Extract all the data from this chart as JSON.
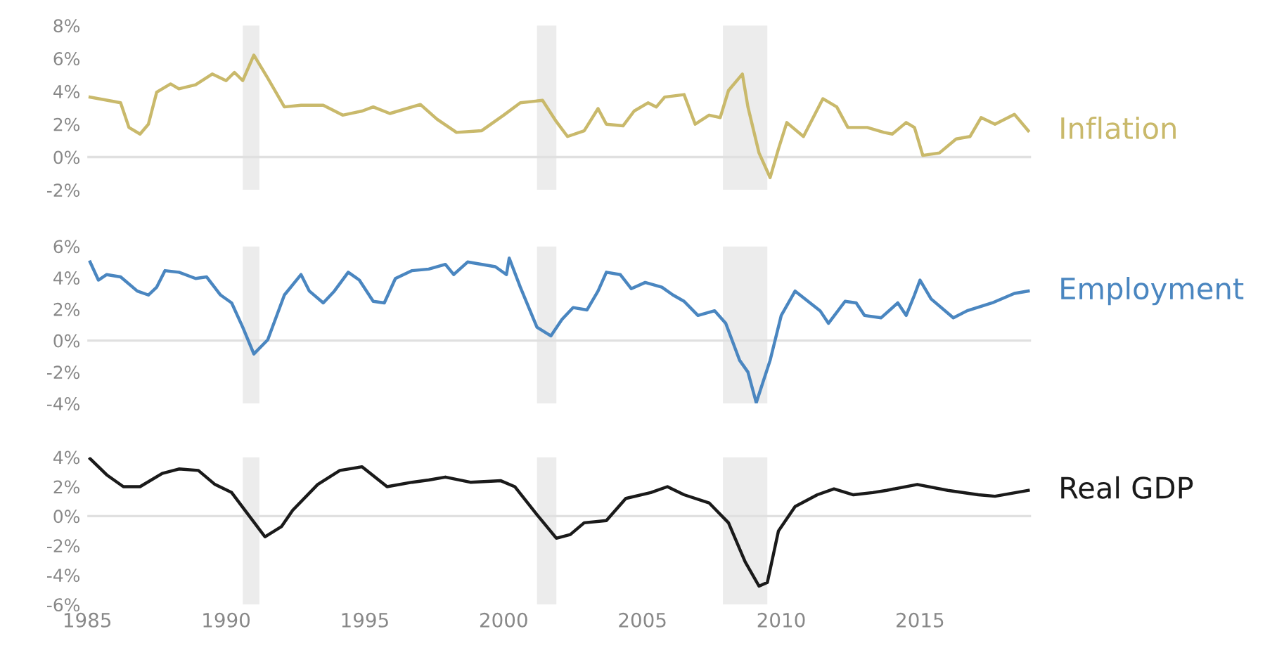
{
  "chart_data": [
    {
      "type": "line",
      "xlim": [
        1985,
        2019
      ],
      "ylim": [
        -2,
        8
      ],
      "yticks": [
        {
          "value": 8,
          "label": "8%"
        },
        {
          "value": 6,
          "label": "6%"
        },
        {
          "value": 4,
          "label": "4%"
        },
        {
          "value": 2,
          "label": "2%"
        },
        {
          "value": 0,
          "label": "0%"
        },
        {
          "value": -2,
          "label": "-2%"
        }
      ],
      "tick_labels": "y",
      "grid": false,
      "legend": false,
      "ref_lines": [
        {
          "axis": "y",
          "value": 0,
          "color": "#e0e0e0"
        }
      ],
      "bands": [
        {
          "axis": "x",
          "from": 1990.6,
          "to": 1991.2,
          "color": "#ececec"
        },
        {
          "axis": "x",
          "from": 2001.2,
          "to": 2001.9,
          "color": "#ececec"
        },
        {
          "axis": "x",
          "from": 2007.9,
          "to": 2009.5,
          "color": "#ececec"
        }
      ],
      "series": [
        {
          "name": "Inflation",
          "color": "#c9b96b",
          "x": [
            1985.1,
            1985.9,
            1986.2,
            1986.5,
            1986.9,
            1987.2,
            1987.5,
            1988.0,
            1988.3,
            1988.9,
            1989.5,
            1990.0,
            1990.3,
            1990.6,
            1991.0,
            1991.5,
            1992.1,
            1992.7,
            1993.5,
            1994.2,
            1994.9,
            1995.3,
            1995.9,
            1997.0,
            1997.6,
            1998.3,
            1999.2,
            2000.0,
            2000.6,
            2001.4,
            2001.9,
            2002.3,
            2002.9,
            2003.4,
            2003.7,
            2004.3,
            2004.7,
            2005.2,
            2005.5,
            2005.8,
            2006.5,
            2006.9,
            2007.4,
            2007.8,
            2008.1,
            2008.6,
            2008.8,
            2009.2,
            2009.6,
            2009.9,
            2010.2,
            2010.8,
            2011.5,
            2012.0,
            2012.4,
            2013.1,
            2013.7,
            2014.0,
            2014.5,
            2014.8,
            2015.1,
            2015.7,
            2016.3,
            2016.8,
            2017.2,
            2017.7,
            2018.4,
            2018.9
          ],
          "values": [
            3.65,
            3.4,
            3.3,
            1.8,
            1.4,
            2.0,
            3.95,
            4.45,
            4.15,
            4.4,
            5.05,
            4.65,
            5.15,
            4.65,
            6.2,
            4.8,
            3.05,
            3.15,
            3.15,
            2.55,
            2.8,
            3.05,
            2.65,
            3.2,
            2.3,
            1.5,
            1.6,
            2.55,
            3.3,
            3.45,
            2.15,
            1.25,
            1.6,
            2.95,
            2.0,
            1.9,
            2.8,
            3.3,
            3.05,
            3.65,
            3.8,
            2.0,
            2.55,
            2.4,
            4.05,
            5.05,
            3.05,
            0.25,
            -1.25,
            0.5,
            2.1,
            1.25,
            3.55,
            3.05,
            1.8,
            1.8,
            1.5,
            1.4,
            2.1,
            1.8,
            0.1,
            0.25,
            1.1,
            1.25,
            2.4,
            2.0,
            2.6,
            1.6
          ]
        }
      ]
    },
    {
      "type": "line",
      "xlim": [
        1985,
        2019
      ],
      "ylim": [
        -4,
        6
      ],
      "yticks": [
        {
          "value": 6,
          "label": "6%"
        },
        {
          "value": 4,
          "label": "4%"
        },
        {
          "value": 2,
          "label": "2%"
        },
        {
          "value": 0,
          "label": "0%"
        },
        {
          "value": -2,
          "label": "-2%"
        },
        {
          "value": -4,
          "label": "-4%"
        }
      ],
      "tick_labels": "y",
      "grid": false,
      "legend": false,
      "ref_lines": [
        {
          "axis": "y",
          "value": 0,
          "color": "#e0e0e0"
        }
      ],
      "bands": [
        {
          "axis": "x",
          "from": 1990.6,
          "to": 1991.2,
          "color": "#ececec"
        },
        {
          "axis": "x",
          "from": 2001.2,
          "to": 2001.9,
          "color": "#ececec"
        },
        {
          "axis": "x",
          "from": 2007.9,
          "to": 2009.5,
          "color": "#ececec"
        }
      ],
      "series": [
        {
          "name": "Employment",
          "color": "#4a86c0",
          "x": [
            1985.1,
            1985.4,
            1985.7,
            1986.2,
            1986.8,
            1987.2,
            1987.5,
            1987.8,
            1988.3,
            1988.9,
            1989.3,
            1989.8,
            1990.2,
            1990.6,
            1991.0,
            1991.5,
            1992.1,
            1992.7,
            1993.0,
            1993.5,
            1993.9,
            1994.4,
            1994.8,
            1995.3,
            1995.7,
            1996.1,
            1996.7,
            1997.3,
            1997.9,
            1998.2,
            1998.7,
            1999.7,
            2000.1,
            2000.2,
            2000.6,
            2001.2,
            2001.7,
            2002.1,
            2002.5,
            2003.0,
            2003.4,
            2003.7,
            2004.2,
            2004.6,
            2005.1,
            2005.7,
            2006.1,
            2006.5,
            2007.0,
            2007.6,
            2008.0,
            2008.5,
            2008.8,
            2009.1,
            2009.6,
            2010.0,
            2010.5,
            2011.4,
            2011.7,
            2012.3,
            2012.7,
            2013.0,
            2013.6,
            2014.2,
            2014.5,
            2014.8,
            2015.0,
            2015.4,
            2016.2,
            2016.7,
            2017.6,
            2018.4,
            2018.9
          ],
          "values": [
            5.0,
            3.85,
            4.2,
            4.05,
            3.15,
            2.9,
            3.4,
            4.45,
            4.35,
            3.95,
            4.05,
            2.9,
            2.4,
            0.85,
            -0.85,
            0.05,
            2.9,
            4.2,
            3.15,
            2.4,
            3.15,
            4.35,
            3.85,
            2.5,
            2.4,
            3.95,
            4.45,
            4.55,
            4.85,
            4.2,
            5.0,
            4.7,
            4.2,
            5.25,
            3.4,
            0.85,
            0.3,
            1.35,
            2.1,
            1.95,
            3.15,
            4.35,
            4.2,
            3.3,
            3.7,
            3.4,
            2.9,
            2.5,
            1.6,
            1.9,
            1.1,
            -1.25,
            -2.0,
            -3.95,
            -1.25,
            1.6,
            3.15,
            1.9,
            1.1,
            2.5,
            2.4,
            1.6,
            1.45,
            2.4,
            1.6,
            2.9,
            3.85,
            2.65,
            1.45,
            1.9,
            2.4,
            3.0,
            3.15
          ]
        }
      ]
    },
    {
      "type": "line",
      "xlim": [
        1985,
        2019
      ],
      "ylim": [
        -6,
        4
      ],
      "xticks": [
        1985,
        1990,
        1995,
        2000,
        2005,
        2010,
        2015
      ],
      "yticks": [
        {
          "value": 4,
          "label": "4%"
        },
        {
          "value": 2,
          "label": "2%"
        },
        {
          "value": 0,
          "label": "0%"
        },
        {
          "value": -2,
          "label": "-2%"
        },
        {
          "value": -4,
          "label": "-4%"
        },
        {
          "value": -6,
          "label": "-6%"
        }
      ],
      "grid": false,
      "legend": false,
      "ref_lines": [
        {
          "axis": "y",
          "value": 0,
          "color": "#e0e0e0"
        }
      ],
      "bands": [
        {
          "axis": "x",
          "from": 1990.6,
          "to": 1991.2,
          "color": "#ececec"
        },
        {
          "axis": "x",
          "from": 2001.2,
          "to": 2001.9,
          "color": "#ececec"
        },
        {
          "axis": "x",
          "from": 2007.9,
          "to": 2009.5,
          "color": "#ececec"
        }
      ],
      "series": [
        {
          "name": "Real GDP",
          "color": "#1a1a1a",
          "x": [
            1985.1,
            1985.7,
            1986.3,
            1986.9,
            1987.7,
            1988.3,
            1989.0,
            1989.6,
            1990.2,
            1990.8,
            1991.4,
            1992.0,
            1992.4,
            1993.3,
            1994.1,
            1994.9,
            1995.8,
            1996.7,
            1997.3,
            1997.9,
            1998.8,
            1999.9,
            2000.4,
            2001.2,
            2001.9,
            2002.4,
            2002.9,
            2003.7,
            2004.4,
            2005.3,
            2005.9,
            2006.5,
            2007.4,
            2008.1,
            2008.7,
            2009.2,
            2009.5,
            2009.9,
            2010.5,
            2011.3,
            2011.9,
            2012.6,
            2013.3,
            2013.8,
            2014.9,
            2016.0,
            2017.1,
            2017.7,
            2018.9
          ],
          "values": [
            3.9,
            2.8,
            2.0,
            2.0,
            2.9,
            3.2,
            3.1,
            2.15,
            1.6,
            0.1,
            -1.4,
            -0.7,
            0.4,
            2.15,
            3.1,
            3.35,
            2.0,
            2.3,
            2.45,
            2.65,
            2.3,
            2.4,
            2.0,
            0.1,
            -1.5,
            -1.25,
            -0.45,
            -0.3,
            1.2,
            1.6,
            2.0,
            1.45,
            0.9,
            -0.45,
            -3.1,
            -4.75,
            -4.5,
            -1.0,
            0.65,
            1.45,
            1.85,
            1.45,
            1.6,
            1.75,
            2.15,
            1.75,
            1.45,
            1.35,
            1.75
          ]
        }
      ]
    }
  ]
}
